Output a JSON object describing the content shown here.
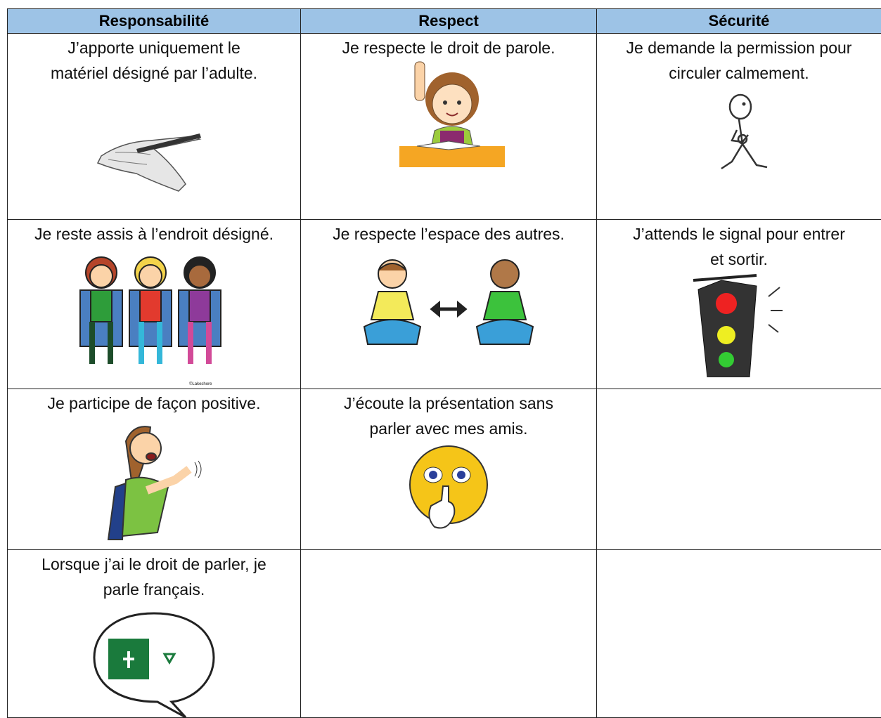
{
  "table": {
    "headers": [
      "Responsabilité",
      "Respect",
      "Sécurité"
    ],
    "rows": [
      [
        {
          "lines": [
            "J’apporte uniquement le",
            "matériel désigné par l’adulte."
          ]
        },
        {
          "lines": [
            "Je respecte le droit de parole."
          ]
        },
        {
          "lines": [
            "Je demande la permission pour",
            "circuler calmement."
          ]
        }
      ],
      [
        {
          "lines": [
            "Je reste assis à l’endroit désigné."
          ],
          "credit": "©Lakeshore"
        },
        {
          "lines": [
            "Je respecte l’espace des autres."
          ]
        },
        {
          "lines": [
            "J’attends le signal pour entrer",
            "et sortir."
          ]
        }
      ],
      [
        {
          "lines": [
            "Je participe de façon positive."
          ]
        },
        {
          "lines": [
            "J’écoute la présentation sans",
            "parler avec mes amis."
          ]
        },
        null
      ],
      [
        {
          "lines": [
            "Lorsque j’ai le droit de parler, je",
            "parle français."
          ]
        },
        null,
        null
      ]
    ]
  }
}
